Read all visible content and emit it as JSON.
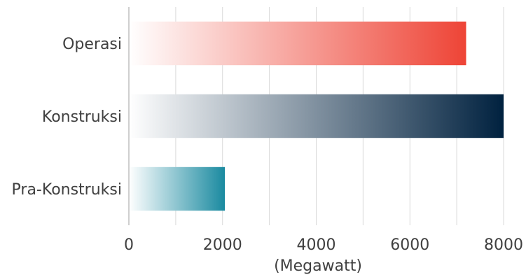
{
  "chart_data": {
    "type": "bar",
    "orientation": "horizontal",
    "categories": [
      "Operasi",
      "Konstruksi",
      "Pra-Konstruksi"
    ],
    "values": [
      7200,
      8000,
      2050
    ],
    "xlabel": "(Megawatt)",
    "ylabel": "",
    "xlim": [
      0,
      8000
    ],
    "xticks": [
      0,
      2000,
      4000,
      6000,
      8000
    ],
    "tick_labels": [
      "0",
      "2000",
      "4000",
      "6000",
      "8000"
    ],
    "grid": "vertical",
    "bar_colors": [
      [
        "#ffffff",
        "#ee4436"
      ],
      [
        "#ffffff",
        "#00213f"
      ],
      [
        "#ffffff",
        "#1a8aa0"
      ]
    ],
    "gridline_color": "#d9d9d9",
    "axis_color": "#bfbfbf",
    "text_color": "#404040"
  }
}
